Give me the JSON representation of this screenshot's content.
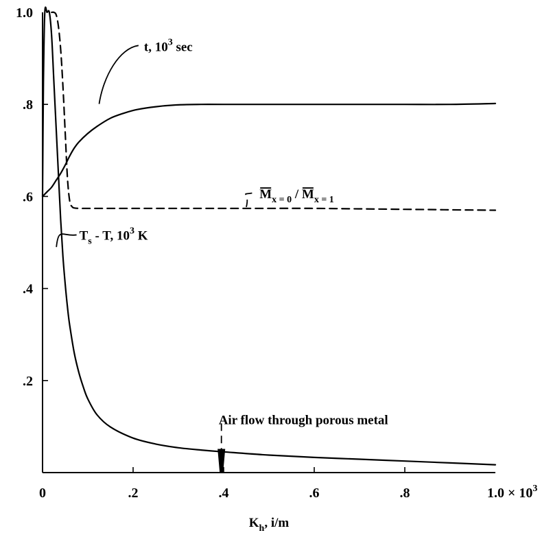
{
  "chart_data": {
    "type": "line",
    "title": "",
    "xlabel": {
      "main": "K",
      "sub": "h",
      "rest": ", i/m"
    },
    "ylabel": "",
    "xlim": [
      0,
      1000
    ],
    "ylim": [
      0,
      1.0
    ],
    "x_ticks": [
      {
        "value": 0,
        "label": "0"
      },
      {
        "value": 200,
        "label": ".2"
      },
      {
        "value": 400,
        "label": ".4"
      },
      {
        "value": 600,
        "label": ".6"
      },
      {
        "value": 800,
        "label": ".8"
      },
      {
        "value": 1000,
        "label": "1.0 × 10",
        "sup": "3"
      }
    ],
    "y_ticks": [
      {
        "value": 0.2,
        "label": ".2"
      },
      {
        "value": 0.4,
        "label": ".4"
      },
      {
        "value": 0.6,
        "label": ".6"
      },
      {
        "value": 0.8,
        "label": ".8"
      },
      {
        "value": 1.0,
        "label": "1.0"
      }
    ],
    "series": [
      {
        "key": "t",
        "style": "solid",
        "x": [
          0,
          10,
          20,
          30,
          40,
          50,
          60,
          70,
          80,
          100,
          120,
          150,
          180,
          210,
          250,
          300,
          350,
          400,
          500,
          600,
          700,
          800,
          900,
          1000
        ],
        "y": [
          0.6,
          0.61,
          0.62,
          0.635,
          0.65,
          0.668,
          0.688,
          0.705,
          0.718,
          0.737,
          0.752,
          0.77,
          0.781,
          0.789,
          0.795,
          0.799,
          0.8,
          0.8,
          0.8,
          0.8,
          0.8,
          0.8,
          0.8,
          0.802
        ]
      },
      {
        "key": "m_ratio",
        "style": "dashed",
        "x": [
          20,
          25,
          30,
          35,
          40,
          45,
          50,
          55,
          60,
          65,
          70,
          80,
          100,
          200,
          300,
          400,
          500,
          600,
          700,
          800,
          900,
          1000
        ],
        "y": [
          1.0,
          1.0,
          0.995,
          0.97,
          0.92,
          0.84,
          0.74,
          0.64,
          0.59,
          0.578,
          0.575,
          0.574,
          0.574,
          0.574,
          0.574,
          0.574,
          0.574,
          0.574,
          0.573,
          0.572,
          0.571,
          0.57
        ]
      },
      {
        "key": "ts_minus_t",
        "style": "solid",
        "x": [
          0,
          2,
          5,
          10,
          15,
          20,
          25,
          30,
          35,
          40,
          45,
          50,
          55,
          60,
          70,
          80,
          90,
          100,
          120,
          150,
          200,
          250,
          300,
          350,
          400,
          500,
          600,
          700,
          800,
          900,
          1000
        ],
        "y": [
          0.6,
          0.85,
          1.0,
          1.0,
          1.0,
          0.95,
          0.85,
          0.75,
          0.65,
          0.55,
          0.47,
          0.41,
          0.36,
          0.32,
          0.26,
          0.218,
          0.186,
          0.16,
          0.126,
          0.099,
          0.075,
          0.062,
          0.054,
          0.049,
          0.045,
          0.038,
          0.033,
          0.029,
          0.025,
          0.021,
          0.017
        ]
      }
    ],
    "annotations": {
      "t_label": {
        "main": "t, 10",
        "sup": "3",
        "rest": " sec",
        "anchor": {
          "x": 215,
          "y": 0.925
        },
        "leader_from": {
          "x": 125,
          "y": 0.795
        }
      },
      "m_label": {
        "m1": "M",
        "sub1": "x = 0",
        "slash": " / ",
        "m2": "M",
        "sub2": "x = 1",
        "anchor": {
          "x": 470,
          "y": 0.605
        },
        "leader_from": {
          "x": 450,
          "y": 0.574
        }
      },
      "ts_label": {
        "main": "T",
        "sub": "s",
        "rest": "  - T, 10",
        "sup": "3",
        "rest2": " K",
        "anchor": {
          "x": 60,
          "y": 0.515
        },
        "leader_from": {
          "x": 23,
          "y": 0.49
        }
      },
      "air_flow": {
        "text": "Air flow through porous metal",
        "x": 395,
        "y": 0.095,
        "arrow_to": 0.0
      }
    }
  }
}
